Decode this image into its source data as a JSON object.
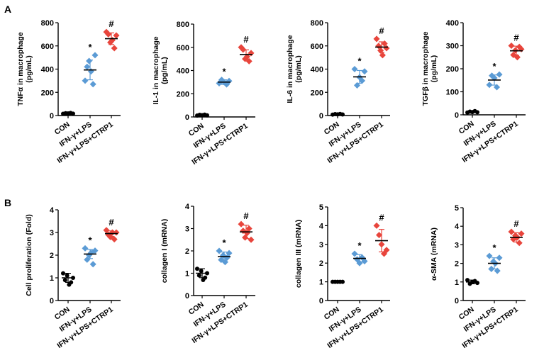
{
  "panels": [
    "A",
    "B"
  ],
  "chart_data": [
    {
      "type": "scatter",
      "panel": "A",
      "ylabel_lines": [
        "TNFα in macrophage",
        "(pg/mL)"
      ],
      "ylim": [
        0,
        800
      ],
      "yticks": [
        0,
        200,
        400,
        600,
        800
      ],
      "categories": [
        "CON",
        "IFN-γ+LPS",
        "IFN-γ+LPS+CTRP1"
      ],
      "colors": [
        "#000000",
        "#5b9bd5",
        "#e8453c"
      ],
      "points": [
        [
          15,
          20,
          18,
          22,
          16
        ],
        [
          300,
          420,
          470,
          380,
          270,
          520
        ],
        [
          720,
          700,
          630,
          650,
          580,
          690
        ]
      ],
      "means": [
        18,
        393,
        662
      ],
      "sds": [
        6,
        85,
        50
      ],
      "significance": [
        "",
        "*",
        "#"
      ]
    },
    {
      "type": "scatter",
      "panel": "A",
      "ylabel_lines": [
        "IL-1 in macrophage",
        "(pg/mL)"
      ],
      "ylim": [
        0,
        800
      ],
      "yticks": [
        0,
        200,
        400,
        600,
        800
      ],
      "categories": [
        "CON",
        "IFN-γ+LPS",
        "IFN-γ+LPS+CTRP1"
      ],
      "colors": [
        "#000000",
        "#5b9bd5",
        "#e8453c"
      ],
      "points": [
        [
          12,
          18,
          15,
          20,
          14
        ],
        [
          290,
          320,
          300,
          280,
          310
        ],
        [
          600,
          580,
          500,
          520,
          480,
          550
        ]
      ],
      "means": [
        15,
        300,
        538
      ],
      "sds": [
        5,
        20,
        40
      ],
      "significance": [
        "",
        "*",
        "#"
      ]
    },
    {
      "type": "scatter",
      "panel": "A",
      "ylabel_lines": [
        "IL-6 in macrophage",
        "(pg/mL)"
      ],
      "ylim": [
        0,
        800
      ],
      "yticks": [
        0,
        200,
        400,
        600,
        800
      ],
      "categories": [
        "CON",
        "IFN-γ+LPS",
        "IFN-γ+LPS+CTRP1"
      ],
      "colors": [
        "#000000",
        "#5b9bd5",
        "#e8453c"
      ],
      "points": [
        [
          8,
          12,
          10,
          14,
          9
        ],
        [
          400,
          260,
          330,
          300,
          380
        ],
        [
          660,
          600,
          560,
          520,
          620,
          580
        ]
      ],
      "means": [
        10,
        333,
        590
      ],
      "sds": [
        4,
        55,
        45
      ],
      "significance": [
        "",
        "*",
        "#"
      ]
    },
    {
      "type": "scatter",
      "panel": "A",
      "ylabel_lines": [
        "TGFβ in macrophage",
        "(pg/mL)"
      ],
      "ylim": [
        0,
        400
      ],
      "yticks": [
        0,
        100,
        200,
        300,
        400
      ],
      "categories": [
        "CON",
        "IFN-γ+LPS",
        "IFN-γ+LPS+CTRP1"
      ],
      "colors": [
        "#000000",
        "#5b9bd5",
        "#e8453c"
      ],
      "points": [
        [
          10,
          14,
          12,
          16,
          11
        ],
        [
          130,
          170,
          160,
          120,
          175
        ],
        [
          300,
          260,
          280,
          250,
          295,
          285
        ]
      ],
      "means": [
        13,
        151,
        278
      ],
      "sds": [
        3,
        22,
        20
      ],
      "significance": [
        "",
        "*",
        "#"
      ]
    },
    {
      "type": "scatter",
      "panel": "B",
      "ylabel_lines": [
        "Cell proliferation (Fold)"
      ],
      "ylim": [
        0,
        4
      ],
      "yticks": [
        0,
        1,
        2,
        3,
        4
      ],
      "categories": [
        "CON",
        "IFN-γ+LPS",
        "IFN-γ+LPS+CTRP1"
      ],
      "colors": [
        "#000000",
        "#5b9bd5",
        "#e8453c"
      ],
      "points": [
        [
          1.2,
          0.9,
          1.1,
          0.7,
          0.8,
          1.0
        ],
        [
          2.3,
          1.8,
          2.0,
          2.1,
          1.6,
          2.2
        ],
        [
          3.1,
          2.9,
          2.8,
          3.0,
          2.7,
          3.0
        ]
      ],
      "means": [
        1.0,
        2.05,
        2.95
      ],
      "sds": [
        0.2,
        0.2,
        0.12
      ],
      "significance": [
        "",
        "*",
        "#"
      ]
    },
    {
      "type": "scatter",
      "panel": "B",
      "ylabel_lines": [
        "collagen I (mRNA)"
      ],
      "ylim": [
        0,
        4
      ],
      "yticks": [
        0,
        1,
        2,
        3,
        4
      ],
      "categories": [
        "CON",
        "IFN-γ+LPS",
        "IFN-γ+LPS+CTRP1"
      ],
      "colors": [
        "#000000",
        "#5b9bd5",
        "#e8453c"
      ],
      "points": [
        [
          1.2,
          0.9,
          1.1,
          0.7,
          0.8,
          1.0
        ],
        [
          2.0,
          1.6,
          1.8,
          1.5,
          1.7,
          1.9
        ],
        [
          3.2,
          2.9,
          2.6,
          2.8,
          3.0,
          2.5
        ]
      ],
      "means": [
        1.0,
        1.75,
        2.85
      ],
      "sds": [
        0.2,
        0.2,
        0.3
      ],
      "significance": [
        "",
        "*",
        "#"
      ]
    },
    {
      "type": "scatter",
      "panel": "B",
      "ylabel_lines": [
        "collagen III (mRNA)"
      ],
      "ylim": [
        0,
        5
      ],
      "yticks": [
        0,
        1,
        2,
        3,
        4,
        5
      ],
      "categories": [
        "CON",
        "IFN-γ+LPS",
        "IFN-γ+LPS+CTRP1"
      ],
      "colors": [
        "#000000",
        "#5b9bd5",
        "#e8453c"
      ],
      "points": [
        [
          1.0,
          1.0,
          1.0,
          1.0,
          1.0
        ],
        [
          2.5,
          2.2,
          2.0,
          2.3,
          2.1
        ],
        [
          4.0,
          3.5,
          3.0,
          2.5,
          2.7
        ]
      ],
      "means": [
        1.0,
        2.25,
        3.2
      ],
      "sds": [
        0.05,
        0.2,
        0.6
      ],
      "significance": [
        "",
        "*",
        "#"
      ]
    },
    {
      "type": "scatter",
      "panel": "B",
      "ylabel_lines": [
        "α-SMA (mRNA)"
      ],
      "ylim": [
        0,
        5
      ],
      "yticks": [
        0,
        1,
        2,
        3,
        4,
        5
      ],
      "categories": [
        "CON",
        "IFN-γ+LPS",
        "IFN-γ+LPS+CTRP1"
      ],
      "colors": [
        "#000000",
        "#5b9bd5",
        "#e8453c"
      ],
      "points": [
        [
          1.1,
          0.9,
          1.0,
          1.05,
          0.95
        ],
        [
          2.4,
          1.7,
          2.1,
          2.0,
          1.6,
          2.3
        ],
        [
          3.7,
          3.3,
          3.5,
          3.4,
          3.1,
          3.6
        ]
      ],
      "means": [
        1.0,
        2.0,
        3.4
      ],
      "sds": [
        0.1,
        0.3,
        0.25
      ],
      "significance": [
        "",
        "*",
        "#"
      ]
    }
  ]
}
